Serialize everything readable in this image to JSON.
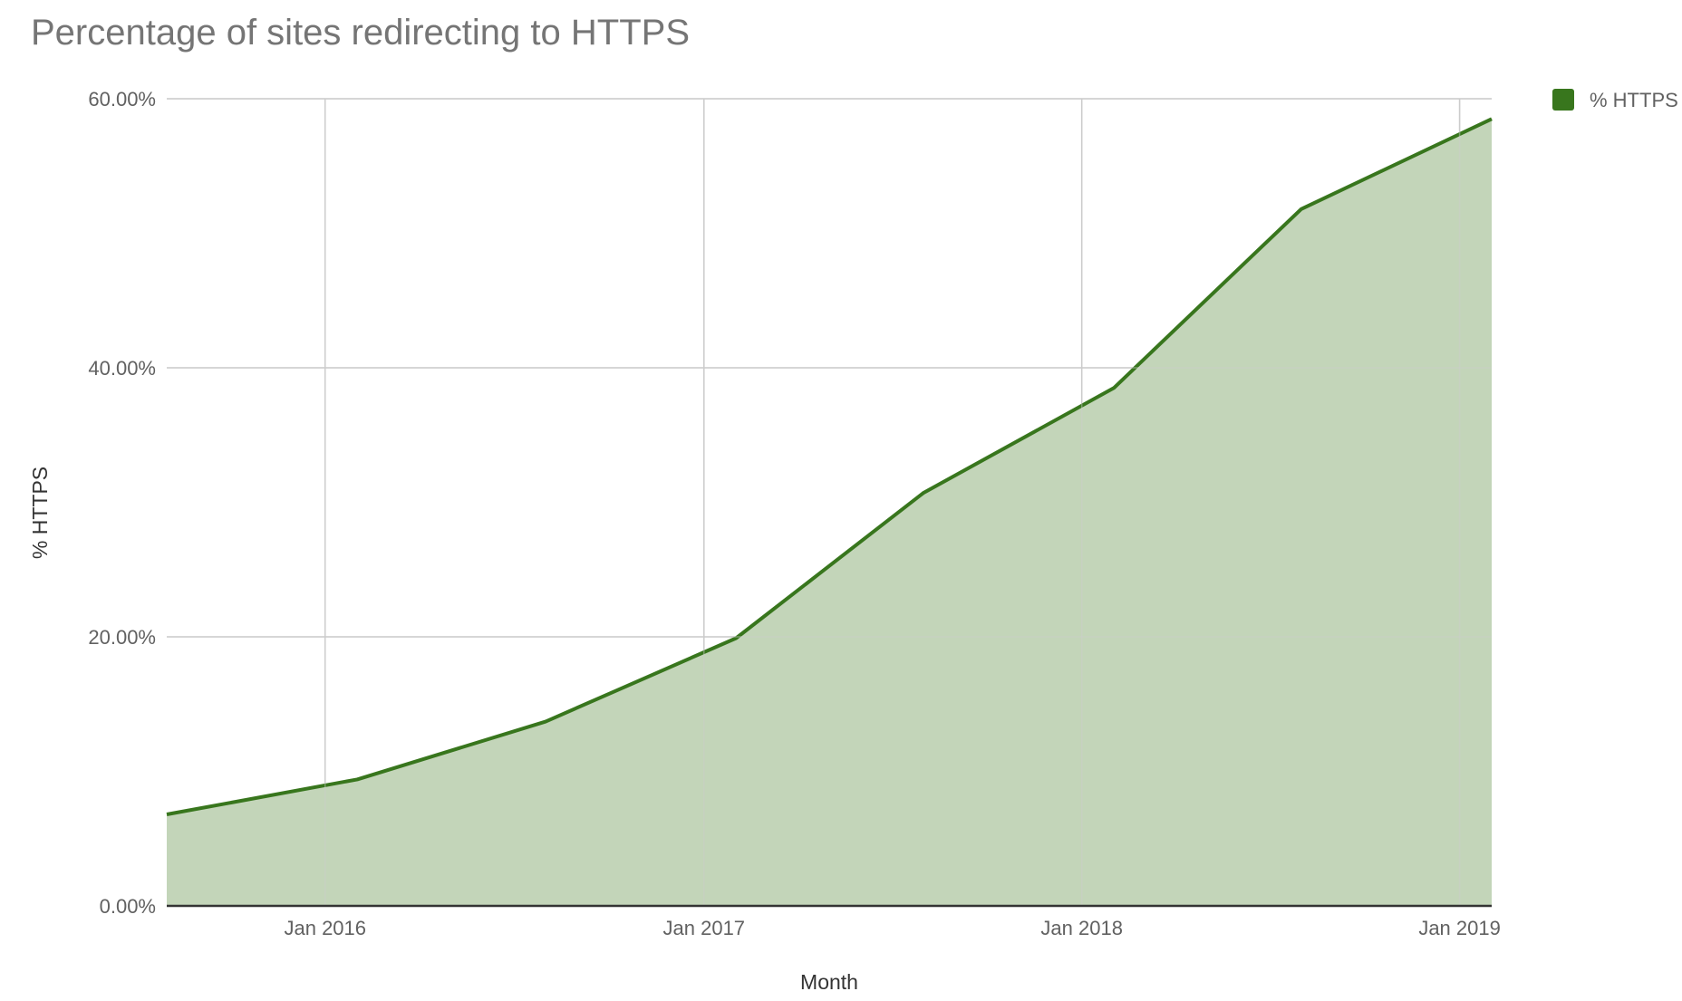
{
  "chart_data": {
    "type": "area",
    "title": "Percentage of sites redirecting to HTTPS",
    "xlabel": "Month",
    "ylabel": "% HTTPS",
    "ylim": [
      0,
      60
    ],
    "xlim": [
      "2015-08-01",
      "2019-02-01"
    ],
    "y_ticks": [
      {
        "value": 0,
        "label": "0.00%"
      },
      {
        "value": 20,
        "label": "20.00%"
      },
      {
        "value": 40,
        "label": "40.00%"
      },
      {
        "value": 60,
        "label": "60.00%"
      }
    ],
    "x_ticks": [
      {
        "date": "2016-01-01",
        "label": "Jan 2016"
      },
      {
        "date": "2017-01-01",
        "label": "Jan 2017"
      },
      {
        "date": "2018-01-01",
        "label": "Jan 2018"
      },
      {
        "date": "2019-01-01",
        "label": "Jan 2019"
      }
    ],
    "grid": true,
    "legend_position": "top-right",
    "series": [
      {
        "name": "% HTTPS",
        "color": "#38761d",
        "fill": "#c3d5b9",
        "x": [
          "2015-08-01",
          "2016-02-01",
          "2016-08-01",
          "2017-02-01",
          "2017-08-01",
          "2018-02-01",
          "2018-08-01",
          "2019-02-01"
        ],
        "values": [
          6.8,
          9.4,
          13.7,
          19.9,
          30.7,
          38.5,
          51.8,
          58.5
        ]
      }
    ]
  }
}
